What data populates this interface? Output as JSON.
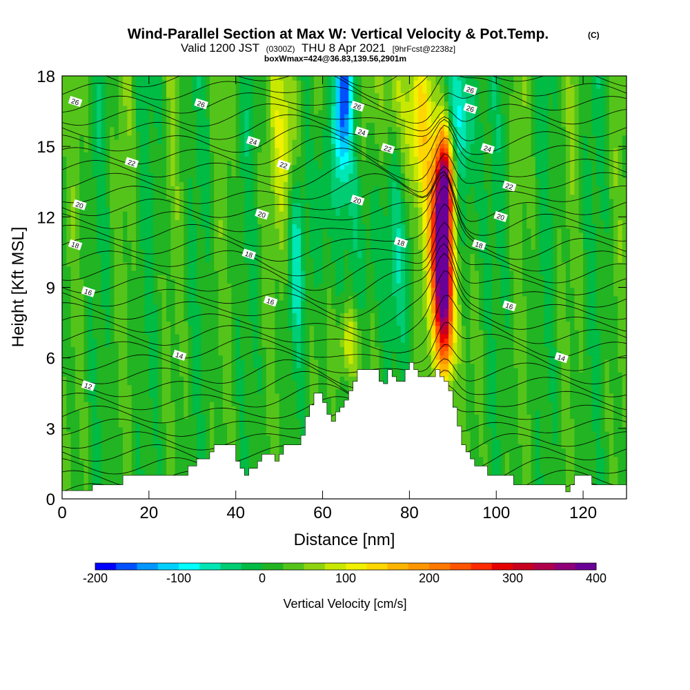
{
  "chart_data": {
    "type": "heatmap",
    "title": "Wind-Parallel Section at Max W: Vertical Velocity & Pot.Temp.",
    "title_mark": "(C)",
    "subtitle_main_a": "Valid 1200 JST",
    "subtitle_small_a": "(0300Z)",
    "subtitle_main_b": "THU 8 Apr 2021",
    "subtitle_small_b": "[9hrFcst@2238z]",
    "subtitle2": "boxWmax=424@36.83,139.56,2901m",
    "xlabel": "Distance [nm]",
    "ylabel": "Height [Kft MSL]",
    "xlim": [
      0,
      130
    ],
    "ylim": [
      0,
      18
    ],
    "x_ticks": [
      "0",
      "20",
      "40",
      "60",
      "80",
      "100",
      "120"
    ],
    "y_ticks": [
      "0",
      "3",
      "6",
      "9",
      "12",
      "15",
      "18"
    ],
    "x_tick_values": [
      0,
      20,
      40,
      60,
      80,
      100,
      120
    ],
    "y_tick_values": [
      0,
      3,
      6,
      9,
      12,
      15,
      18
    ],
    "colorbar": {
      "label": "Vertical Velocity [cm/s]",
      "range": [
        -200,
        400
      ],
      "tick_labels": [
        "-200",
        "-100",
        "0",
        "100",
        "200",
        "300",
        "400"
      ],
      "tick_values": [
        -200,
        -100,
        0,
        100,
        200,
        300,
        400
      ],
      "colors": [
        "#0000ff",
        "#0050ff",
        "#0096ff",
        "#00d0ff",
        "#00ffff",
        "#00e6b4",
        "#00cc73",
        "#00bb44",
        "#22b422",
        "#55c41a",
        "#8fd410",
        "#c8e800",
        "#f0f000",
        "#ffd700",
        "#ffb400",
        "#ff9600",
        "#ff7800",
        "#ff5500",
        "#ff2a00",
        "#e60000",
        "#c8001e",
        "#b0004a",
        "#900078",
        "#6a0096"
      ]
    },
    "contour_labels": [
      {
        "text": "26",
        "x": 3,
        "y": 16.9
      },
      {
        "text": "26",
        "x": 32,
        "y": 16.8
      },
      {
        "text": "24",
        "x": 44,
        "y": 15.2
      },
      {
        "text": "22",
        "x": 16,
        "y": 14.3
      },
      {
        "text": "22",
        "x": 51,
        "y": 14.2
      },
      {
        "text": "20",
        "x": 4,
        "y": 12.5
      },
      {
        "text": "20",
        "x": 46,
        "y": 12.1
      },
      {
        "text": "18",
        "x": 3,
        "y": 10.8
      },
      {
        "text": "18",
        "x": 43,
        "y": 10.4
      },
      {
        "text": "16",
        "x": 6,
        "y": 8.8
      },
      {
        "text": "16",
        "x": 48,
        "y": 8.4
      },
      {
        "text": "14",
        "x": 27,
        "y": 6.1
      },
      {
        "text": "12",
        "x": 6,
        "y": 4.8
      },
      {
        "text": "26",
        "x": 68,
        "y": 16.7
      },
      {
        "text": "24",
        "x": 69,
        "y": 15.6
      },
      {
        "text": "22",
        "x": 75,
        "y": 14.9
      },
      {
        "text": "20",
        "x": 68,
        "y": 12.7
      },
      {
        "text": "18",
        "x": 78,
        "y": 10.9
      },
      {
        "text": "26",
        "x": 94,
        "y": 17.4
      },
      {
        "text": "26",
        "x": 94,
        "y": 16.6
      },
      {
        "text": "24",
        "x": 98,
        "y": 14.9
      },
      {
        "text": "22",
        "x": 103,
        "y": 13.3
      },
      {
        "text": "20",
        "x": 101,
        "y": 12.0
      },
      {
        "text": "18",
        "x": 96,
        "y": 10.8
      },
      {
        "text": "16",
        "x": 103,
        "y": 8.2
      },
      {
        "text": "14",
        "x": 115,
        "y": 6.0
      }
    ],
    "terrain_profile": [
      [
        0,
        0.35
      ],
      [
        7,
        0.35
      ],
      [
        7,
        0.6
      ],
      [
        14,
        0.6
      ],
      [
        14,
        1.0
      ],
      [
        29,
        1.0
      ],
      [
        29,
        1.4
      ],
      [
        31,
        1.4
      ],
      [
        31,
        1.7
      ],
      [
        34,
        1.7
      ],
      [
        34,
        2.0
      ],
      [
        35,
        2.0
      ],
      [
        35,
        2.3
      ],
      [
        40,
        2.3
      ],
      [
        40,
        1.6
      ],
      [
        41,
        1.6
      ],
      [
        41,
        1.3
      ],
      [
        42,
        1.3
      ],
      [
        42,
        1.0
      ],
      [
        43,
        1.0
      ],
      [
        43,
        1.3
      ],
      [
        45,
        1.3
      ],
      [
        45,
        1.6
      ],
      [
        46,
        1.6
      ],
      [
        46,
        1.9
      ],
      [
        49,
        1.9
      ],
      [
        49,
        1.6
      ],
      [
        50,
        1.6
      ],
      [
        50,
        1.9
      ],
      [
        51,
        1.9
      ],
      [
        51,
        2.3
      ],
      [
        55,
        2.3
      ],
      [
        55,
        2.7
      ],
      [
        56,
        2.7
      ],
      [
        56,
        3.5
      ],
      [
        57,
        3.5
      ],
      [
        57,
        4.0
      ],
      [
        58,
        4.0
      ],
      [
        58,
        4.5
      ],
      [
        60,
        4.5
      ],
      [
        60,
        4.1
      ],
      [
        61,
        4.1
      ],
      [
        61,
        3.6
      ],
      [
        62,
        3.6
      ],
      [
        62,
        3.3
      ],
      [
        63,
        3.3
      ],
      [
        63,
        3.7
      ],
      [
        64,
        3.7
      ],
      [
        64,
        3.9
      ],
      [
        65,
        3.9
      ],
      [
        65,
        4.2
      ],
      [
        66,
        4.2
      ],
      [
        66,
        4.6
      ],
      [
        67,
        4.6
      ],
      [
        67,
        5.0
      ],
      [
        68,
        5.0
      ],
      [
        68,
        5.5
      ],
      [
        73,
        5.5
      ],
      [
        73,
        5.0
      ],
      [
        74,
        5.0
      ],
      [
        74,
        4.9
      ],
      [
        75,
        4.9
      ],
      [
        75,
        5.5
      ],
      [
        76,
        5.5
      ],
      [
        76,
        5.2
      ],
      [
        77,
        5.2
      ],
      [
        77,
        5.0
      ],
      [
        79,
        5.0
      ],
      [
        79,
        5.5
      ],
      [
        80,
        5.5
      ],
      [
        80,
        5.8
      ],
      [
        81,
        5.8
      ],
      [
        81,
        5.5
      ],
      [
        82,
        5.5
      ],
      [
        82,
        5.2
      ],
      [
        86,
        5.2
      ],
      [
        86,
        5.5
      ],
      [
        87,
        5.5
      ],
      [
        87,
        5.2
      ],
      [
        88,
        5.2
      ],
      [
        88,
        5.0
      ],
      [
        89,
        5.0
      ],
      [
        89,
        4.6
      ],
      [
        90,
        4.6
      ],
      [
        90,
        3.9
      ],
      [
        91,
        3.9
      ],
      [
        91,
        3.1
      ],
      [
        92,
        3.1
      ],
      [
        92,
        2.3
      ],
      [
        93,
        2.3
      ],
      [
        93,
        2.0
      ],
      [
        94,
        2.0
      ],
      [
        94,
        1.7
      ],
      [
        95,
        1.7
      ],
      [
        95,
        1.4
      ],
      [
        98,
        1.4
      ],
      [
        98,
        1.0
      ],
      [
        104,
        1.0
      ],
      [
        104,
        0.6
      ],
      [
        116,
        0.6
      ],
      [
        116,
        0.3
      ],
      [
        117,
        0.3
      ],
      [
        117,
        0.6
      ],
      [
        118,
        0.6
      ],
      [
        118,
        1.0
      ],
      [
        122,
        1.0
      ],
      [
        122,
        0.6
      ],
      [
        130,
        0.6
      ]
    ],
    "updraft_features": [
      {
        "x": 87.5,
        "z": 10.8,
        "sx": 1.4,
        "sz": 2.6,
        "w": 400
      },
      {
        "x": 88.5,
        "z": 7.3,
        "sx": 1.3,
        "sz": 1.8,
        "w": 160
      },
      {
        "x": 88.5,
        "z": 13.8,
        "sx": 1.4,
        "sz": 1.4,
        "w": 150
      },
      {
        "x": 87.0,
        "z": 11.5,
        "sx": 3.2,
        "sz": 3.8,
        "w": 110
      },
      {
        "x": 66.0,
        "z": 6.6,
        "sx": 1.8,
        "sz": 1.2,
        "w": 90
      },
      {
        "x": 52.0,
        "z": 15.5,
        "sx": 2.3,
        "sz": 2.8,
        "w": 90
      },
      {
        "x": 81.5,
        "z": 16.0,
        "sx": 2.8,
        "sz": 2.2,
        "w": 80
      },
      {
        "x": 76.5,
        "z": 17.5,
        "sx": 1.6,
        "sz": 1.6,
        "w": 70
      }
    ],
    "downdraft_features": [
      {
        "x": 64.5,
        "z": 17.0,
        "sx": 1.4,
        "sz": 2.4,
        "w": -170
      },
      {
        "x": 92.0,
        "z": 16.3,
        "sx": 2.4,
        "sz": 2.0,
        "w": -110
      },
      {
        "x": 54.0,
        "z": 10.5,
        "sx": 1.3,
        "sz": 2.8,
        "w": -70
      },
      {
        "x": 60.0,
        "z": 13.0,
        "sx": 1.7,
        "sz": 3.0,
        "w": -60
      },
      {
        "x": 78.0,
        "z": 10.0,
        "sx": 3.5,
        "sz": 2.6,
        "w": -40
      },
      {
        "x": 70.5,
        "z": 11.0,
        "sx": 2.3,
        "sz": 2.6,
        "w": -40
      },
      {
        "x": 93.0,
        "z": 12.0,
        "sx": 2.6,
        "sz": 2.4,
        "w": -45
      }
    ]
  }
}
